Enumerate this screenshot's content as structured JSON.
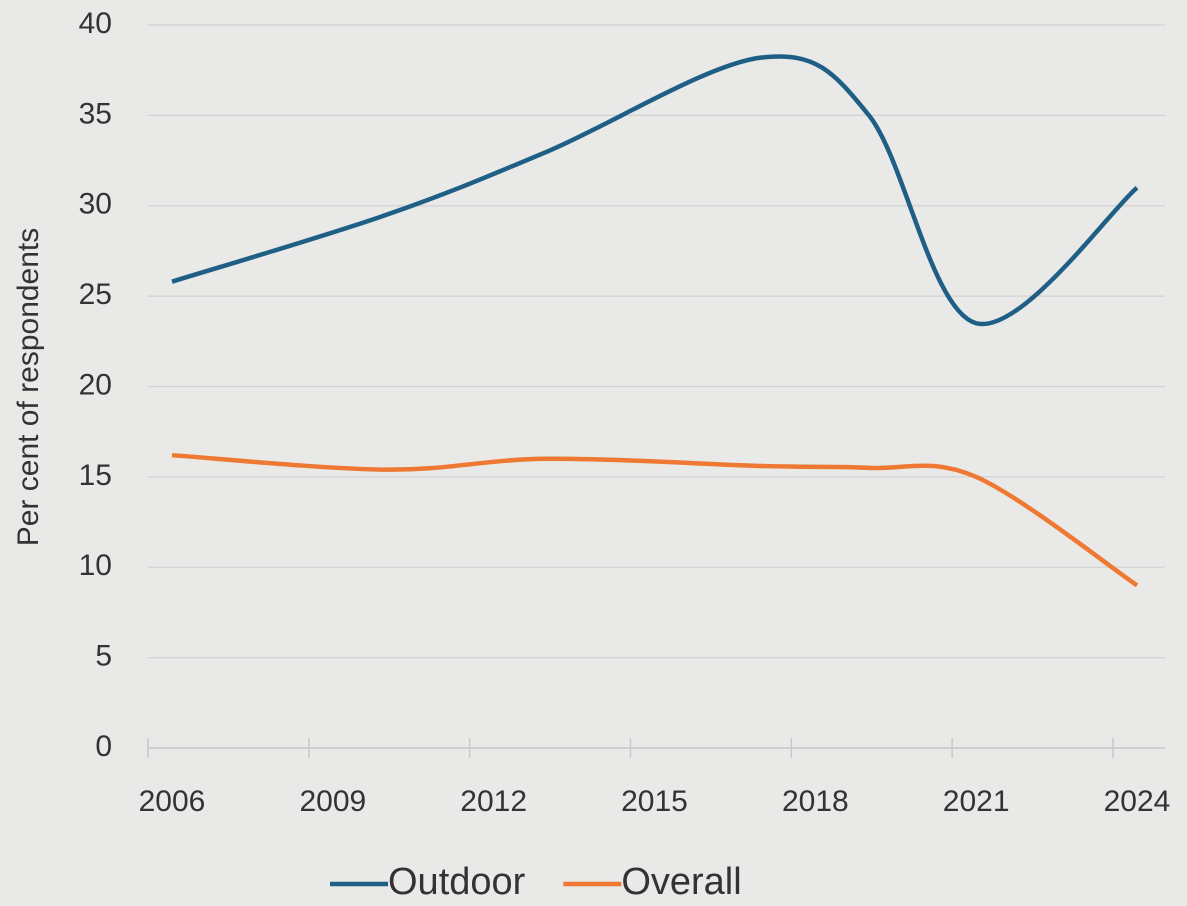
{
  "chart_data": {
    "type": "line",
    "y_label": "Per cent of respondents",
    "x": [
      2006,
      2010,
      2013,
      2017,
      2019,
      2021,
      2024
    ],
    "series": [
      {
        "name": "Outdoor",
        "color": "#1f5f86",
        "values": [
          25.8,
          29.5,
          33,
          38.2,
          35,
          23.5,
          31
        ]
      },
      {
        "name": "Overall",
        "color": "#ef7833",
        "values": [
          16.2,
          15.4,
          16.0,
          15.6,
          15.5,
          15.0,
          9.0
        ]
      }
    ],
    "xlim": [
      2006,
      2024
    ],
    "xticks": [
      2006,
      2009,
      2012,
      2015,
      2018,
      2021,
      2024
    ],
    "ylim": [
      0,
      40
    ],
    "yticks": [
      0,
      5,
      10,
      15,
      20,
      25,
      30,
      35,
      40
    ],
    "grid": true,
    "legend": "bottom"
  }
}
